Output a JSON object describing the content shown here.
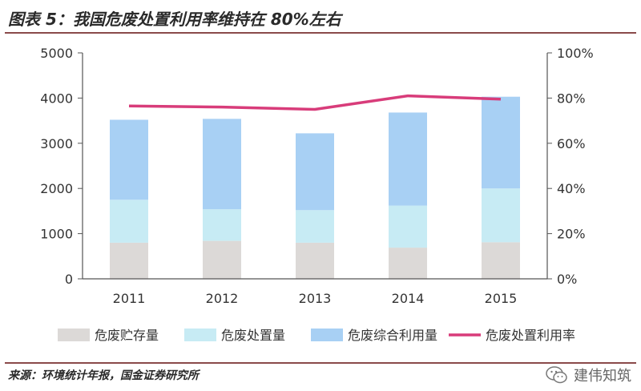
{
  "title": "图表 5：我国危废处置利用率维持在 80%左右",
  "source": "来源：环境统计年报，国金证券研究所",
  "watermark": {
    "text": "建伟知筑",
    "icon": "wechat-icon"
  },
  "colors": {
    "storage": "#dcd9d7",
    "disposal": "#c7ebf4",
    "utilization": "#a8d0f4",
    "rate": "#d83c7a",
    "axis": "#555555",
    "rule": "#8a4a4a"
  },
  "chart_data": {
    "type": "bar",
    "categories": [
      "2011",
      "2012",
      "2013",
      "2014",
      "2015"
    ],
    "stacked": true,
    "series": [
      {
        "name": "危废贮存量",
        "values": [
          800,
          840,
          800,
          690,
          810
        ],
        "axis": "left",
        "color_key": "storage"
      },
      {
        "name": "危废处置量",
        "values": [
          950,
          700,
          720,
          930,
          1190
        ],
        "axis": "left",
        "color_key": "disposal"
      },
      {
        "name": "危废综合利用量",
        "values": [
          1770,
          2000,
          1700,
          2060,
          2030
        ],
        "axis": "left",
        "color_key": "utilization"
      },
      {
        "name": "危废处置利用率",
        "type": "line",
        "values": [
          76.5,
          76,
          75,
          81,
          79.5
        ],
        "axis": "right",
        "color_key": "rate"
      }
    ],
    "y_left": {
      "min": 0,
      "max": 5000,
      "ticks": [
        "0",
        "1000",
        "2000",
        "3000",
        "4000",
        "5000"
      ]
    },
    "y_right": {
      "min": 0,
      "max": 100,
      "ticks": [
        "0%",
        "20%",
        "40%",
        "60%",
        "80%",
        "100%"
      ]
    },
    "grid": false,
    "legend_position": "bottom"
  }
}
